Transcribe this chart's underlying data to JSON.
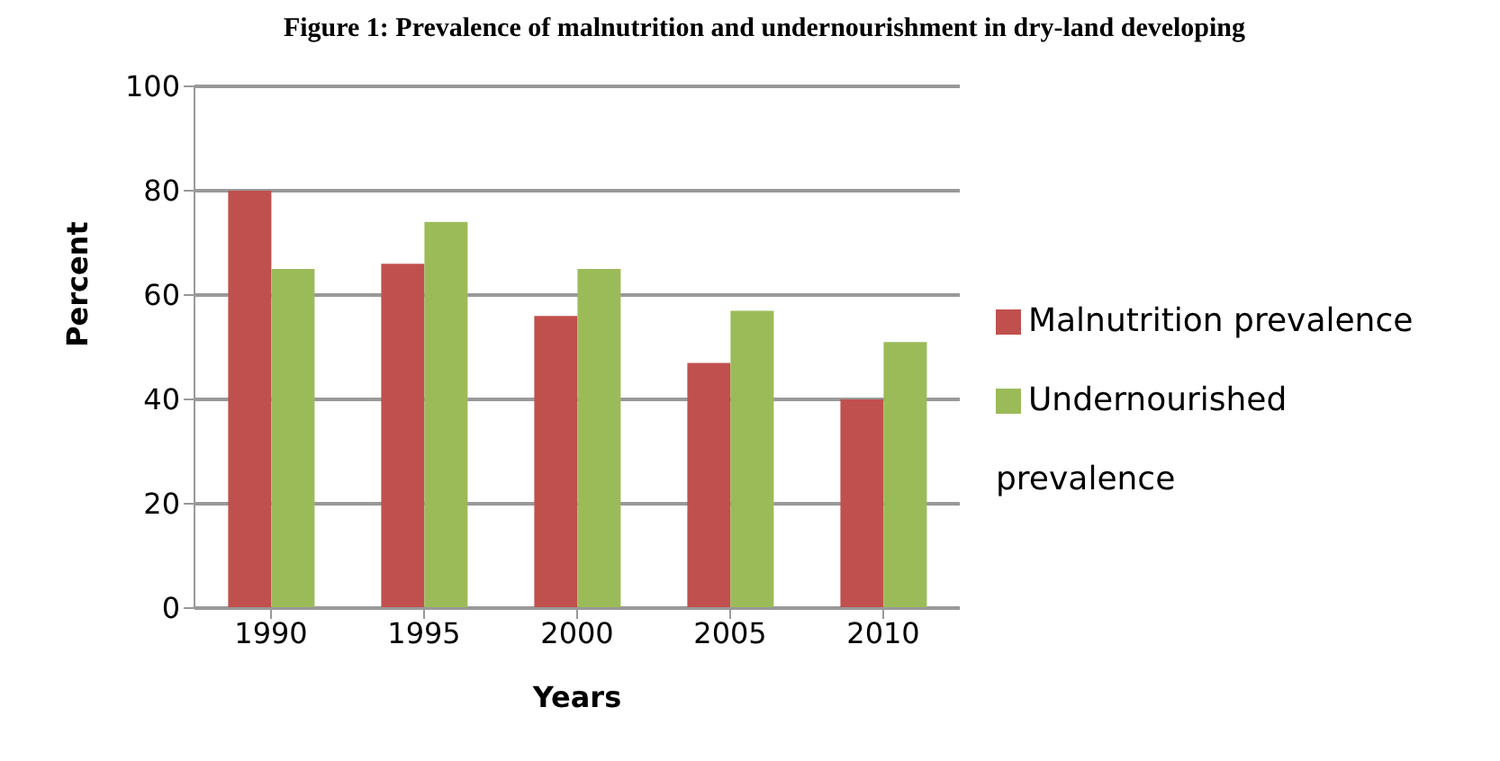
{
  "chart_data": {
    "type": "bar",
    "title": "Figure 1: Prevalence of malnutrition and undernourishment in dry-land developing",
    "xlabel": "Years",
    "ylabel": "Percent",
    "categories": [
      "1990",
      "1995",
      "2000",
      "2005",
      "2010"
    ],
    "series": [
      {
        "name": "Malnutrition prevalence",
        "color": "#c0504d",
        "values": [
          80,
          66,
          56,
          47,
          40
        ]
      },
      {
        "name": "Undernourished prevalence",
        "color": "#9bbb59",
        "values": [
          65,
          74,
          65,
          57,
          51
        ]
      }
    ],
    "ylim": [
      0,
      100
    ],
    "yticks": [
      0,
      20,
      40,
      60,
      80,
      100
    ],
    "grid": "y",
    "legend": "right"
  }
}
